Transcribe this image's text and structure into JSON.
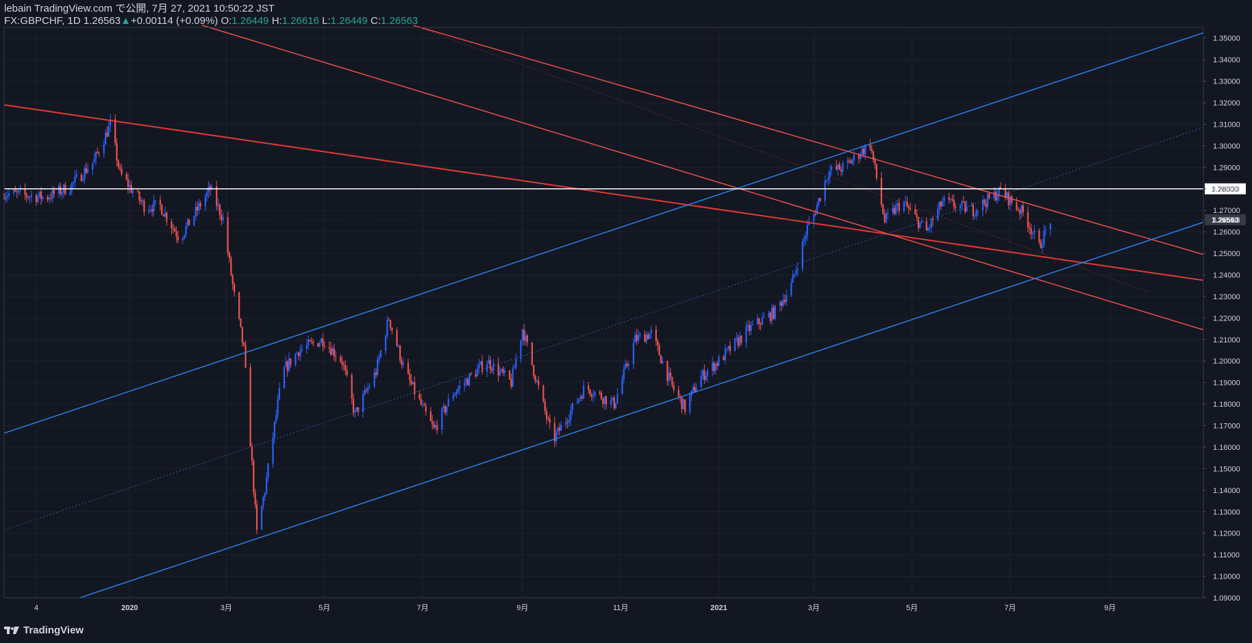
{
  "header": {
    "line1": "lebain TradingView.com で公開, 7月 27, 2021 10:50:22 JST",
    "symbol": "FX:GBPCHF, 1D",
    "last": "1.26563",
    "arrow": "▲",
    "change": "+0.00114 (+0.09%)",
    "o_label": "O:",
    "o": "1.26449",
    "h_label": "H:",
    "h": "1.26616",
    "l_label": "L:",
    "l": "1.26449",
    "c_label": "C:",
    "c": "1.26563"
  },
  "footer": {
    "brand": "TradingView",
    "logo_icon": "tradingview-logo-icon"
  },
  "colors": {
    "bg": "#131722",
    "up": "#2962ff",
    "down": "#ef5350",
    "blue_line": "#2a7fe8",
    "red_line": "#e53935",
    "level": "#ffffff",
    "grid": "#1e2230",
    "text": "#d1d4dc",
    "green": "#26a69a"
  },
  "chart_data": {
    "type": "candlestick",
    "symbol": "FX:GBPCHF",
    "interval": "1D",
    "ylim": [
      1.09,
      1.355
    ],
    "y_ticks": [
      "1.35000",
      "1.34000",
      "1.33000",
      "1.32000",
      "1.31000",
      "1.30000",
      "1.29000",
      "1.28000",
      "1.27000",
      "1.26563",
      "1.26000",
      "1.25000",
      "1.24000",
      "1.23000",
      "1.22000",
      "1.21000",
      "1.20000",
      "1.19000",
      "1.18000",
      "1.17000",
      "1.16000",
      "1.15000",
      "1.14000",
      "1.13000",
      "1.12000",
      "1.11000",
      "1.10000",
      "1.09000"
    ],
    "y_tick_values": [
      1.35,
      1.34,
      1.33,
      1.32,
      1.31,
      1.3,
      1.29,
      1.28,
      1.27,
      1.26563,
      1.26,
      1.25,
      1.24,
      1.23,
      1.22,
      1.21,
      1.2,
      1.19,
      1.18,
      1.17,
      1.16,
      1.15,
      1.14,
      1.13,
      1.12,
      1.11,
      1.1,
      1.09
    ],
    "x_ticks": [
      {
        "label": "4",
        "date": "2019-11-04"
      },
      {
        "label": "2020",
        "date": "2020-01-01"
      },
      {
        "label": "3月",
        "date": "2020-03-01"
      },
      {
        "label": "5月",
        "date": "2020-05-01"
      },
      {
        "label": "7月",
        "date": "2020-07-01"
      },
      {
        "label": "9月",
        "date": "2020-09-01"
      },
      {
        "label": "11月",
        "date": "2020-11-01"
      },
      {
        "label": "2021",
        "date": "2021-01-01"
      },
      {
        "label": "3月",
        "date": "2021-03-01"
      },
      {
        "label": "5月",
        "date": "2021-05-01"
      },
      {
        "label": "7月",
        "date": "2021-07-01"
      },
      {
        "label": "9月",
        "date": "2021-09-01"
      }
    ],
    "x_range": [
      "2019-10-15",
      "2021-10-29"
    ],
    "last_price": 1.26563,
    "horizontal_levels": [
      {
        "value": 1.28,
        "label": "1.28000",
        "color": "#ffffff"
      }
    ],
    "path_points": [
      [
        "2019-10-15",
        1.278
      ],
      [
        "2019-11-10",
        1.276
      ],
      [
        "2019-11-25",
        1.281
      ],
      [
        "2019-12-10",
        1.293
      ],
      [
        "2019-12-20",
        1.31
      ],
      [
        "2019-12-26",
        1.287
      ],
      [
        "2020-01-10",
        1.272
      ],
      [
        "2020-01-20",
        1.272
      ],
      [
        "2020-02-01",
        1.257
      ],
      [
        "2020-02-20",
        1.28
      ],
      [
        "2020-02-28",
        1.266
      ],
      [
        "2020-03-06",
        1.23
      ],
      [
        "2020-03-12",
        1.205
      ],
      [
        "2020-03-20",
        1.12
      ],
      [
        "2020-03-25",
        1.14
      ],
      [
        "2020-04-05",
        1.195
      ],
      [
        "2020-04-15",
        1.205
      ],
      [
        "2020-04-30",
        1.21
      ],
      [
        "2020-05-12",
        1.2
      ],
      [
        "2020-05-20",
        1.175
      ],
      [
        "2020-06-02",
        1.195
      ],
      [
        "2020-06-10",
        1.22
      ],
      [
        "2020-06-20",
        1.195
      ],
      [
        "2020-07-01",
        1.178
      ],
      [
        "2020-07-08",
        1.168
      ],
      [
        "2020-07-20",
        1.185
      ],
      [
        "2020-08-10",
        1.2
      ],
      [
        "2020-08-25",
        1.19
      ],
      [
        "2020-09-01",
        1.215
      ],
      [
        "2020-09-10",
        1.19
      ],
      [
        "2020-09-20",
        1.163
      ],
      [
        "2020-10-10",
        1.188
      ],
      [
        "2020-10-28",
        1.18
      ],
      [
        "2020-11-10",
        1.21
      ],
      [
        "2020-11-20",
        1.213
      ],
      [
        "2020-12-03",
        1.188
      ],
      [
        "2020-12-11",
        1.178
      ],
      [
        "2020-12-20",
        1.192
      ],
      [
        "2021-01-01",
        1.2
      ],
      [
        "2021-01-20",
        1.215
      ],
      [
        "2021-02-05",
        1.223
      ],
      [
        "2021-02-15",
        1.235
      ],
      [
        "2021-02-25",
        1.262
      ],
      [
        "2021-03-01",
        1.268
      ],
      [
        "2021-03-10",
        1.288
      ],
      [
        "2021-03-20",
        1.29
      ],
      [
        "2021-04-05",
        1.301
      ],
      [
        "2021-04-14",
        1.265
      ],
      [
        "2021-04-25",
        1.274
      ],
      [
        "2021-05-10",
        1.26
      ],
      [
        "2021-05-20",
        1.274
      ],
      [
        "2021-06-08",
        1.27
      ],
      [
        "2021-06-25",
        1.279
      ],
      [
        "2021-07-10",
        1.268
      ],
      [
        "2021-07-19",
        1.253
      ],
      [
        "2021-07-26",
        1.2656
      ]
    ],
    "trend_lines": [
      {
        "color": "#e53935",
        "width": 2,
        "p1": [
          "2019-10-15",
          1.319
        ],
        "p2": [
          "2021-10-29",
          1.2375
        ]
      },
      {
        "color": "#e8514b",
        "width": 1.5,
        "p1": [
          "2020-02-15",
          1.356
        ],
        "p2": [
          "2021-10-29",
          1.2145
        ]
      },
      {
        "color": "#e8514b",
        "width": 1.5,
        "p1": [
          "2020-06-25",
          1.356
        ],
        "p2": [
          "2021-10-29",
          1.2495
        ]
      },
      {
        "color": "#7a2a2a",
        "width": 1,
        "dash": "2,3",
        "p1": [
          "2020-06-25",
          1.356
        ],
        "p2": [
          "2021-09-25",
          1.232
        ]
      },
      {
        "color": "#2a7fe8",
        "width": 1.5,
        "p1": [
          "2019-10-15",
          1.1665
        ],
        "p2": [
          "2021-10-29",
          1.3525
        ]
      },
      {
        "color": "#2a7fe8",
        "width": 1.5,
        "p1": [
          "2019-12-01",
          1.09
        ],
        "p2": [
          "2021-10-29",
          1.2645
        ]
      },
      {
        "color": "#2a5fa8",
        "width": 1,
        "dash": "2,3",
        "p1": [
          "2019-10-15",
          1.1215
        ],
        "p2": [
          "2021-10-29",
          1.3085
        ]
      }
    ]
  }
}
